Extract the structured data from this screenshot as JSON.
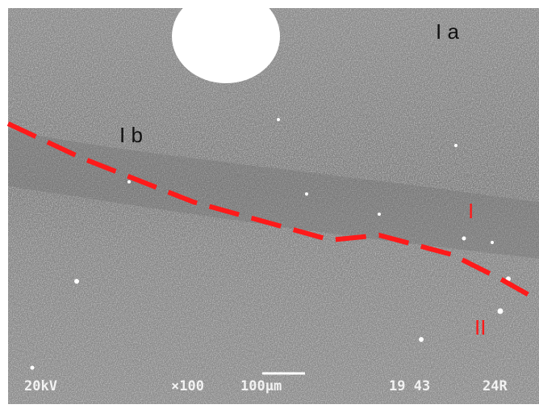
{
  "image": {
    "region_labels": [
      "I a",
      "I b"
    ],
    "zone_labels": [
      "I",
      "II"
    ]
  },
  "info_bar": {
    "voltage": "20kV",
    "magnification": "×100",
    "scale": "100µm",
    "numbers": "19 43",
    "code": "24R"
  }
}
